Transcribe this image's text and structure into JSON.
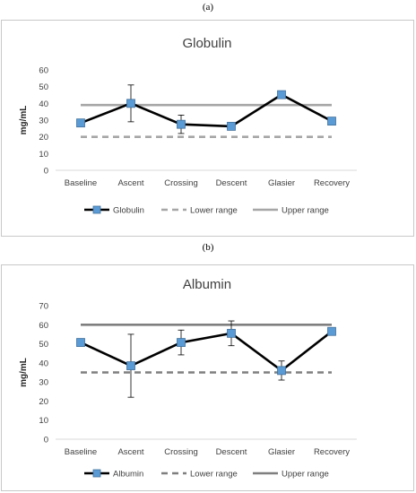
{
  "panels": [
    {
      "label": "(a)",
      "chart_data": {
        "type": "line",
        "title": "Globulin",
        "xlabel": "",
        "ylabel": "mg/mL",
        "categories": [
          "Baseline",
          "Ascent",
          "Crossing",
          "Descent",
          "Glasier",
          "Recovery"
        ],
        "ylim": [
          0,
          60
        ],
        "yticks": [
          0,
          10,
          20,
          30,
          40,
          50,
          60
        ],
        "series": [
          {
            "name": "Globulin",
            "values": [
              28.3,
              40.0,
              27.5,
              26.3,
              45.2,
              29.4
            ],
            "error_plus": [
              0,
              11.0,
              5.5,
              0,
              0,
              0
            ],
            "error_minus": [
              0,
              11.0,
              5.5,
              0,
              0,
              0
            ],
            "color": "#000000",
            "marker_color": "#5b9bd5",
            "style": "solid"
          },
          {
            "name": "Lower range",
            "values": [
              20,
              20,
              20,
              20,
              20,
              20
            ],
            "color": "#a6a6a6",
            "style": "dashed"
          },
          {
            "name": "Upper range",
            "values": [
              39,
              39,
              39,
              39,
              39,
              39
            ],
            "color": "#a6a6a6",
            "style": "solid"
          }
        ],
        "grid": false,
        "legend": "bottom"
      }
    },
    {
      "label": "(b)",
      "chart_data": {
        "type": "line",
        "title": "Albumin",
        "xlabel": "",
        "ylabel": "mg/mL",
        "categories": [
          "Baseline",
          "Ascent",
          "Crossing",
          "Descent",
          "Glasier",
          "Recovery"
        ],
        "ylim": [
          0,
          70
        ],
        "yticks": [
          0,
          10,
          20,
          30,
          40,
          50,
          60,
          70
        ],
        "series": [
          {
            "name": "Albumin",
            "values": [
              50.7,
              38.5,
              50.7,
              55.5,
              36.0,
              56.5
            ],
            "error_plus": [
              0,
              16.5,
              6.5,
              6.5,
              5.0,
              0
            ],
            "error_minus": [
              0,
              16.5,
              6.5,
              6.5,
              5.0,
              0
            ],
            "color": "#000000",
            "marker_color": "#5b9bd5",
            "style": "solid"
          },
          {
            "name": "Lower range",
            "values": [
              35,
              35,
              35,
              35,
              35,
              35
            ],
            "color": "#7f7f7f",
            "style": "dashed"
          },
          {
            "name": "Upper range",
            "values": [
              60,
              60,
              60,
              60,
              60,
              60
            ],
            "color": "#7f7f7f",
            "style": "solid"
          }
        ],
        "grid": false,
        "legend": "bottom"
      }
    }
  ]
}
